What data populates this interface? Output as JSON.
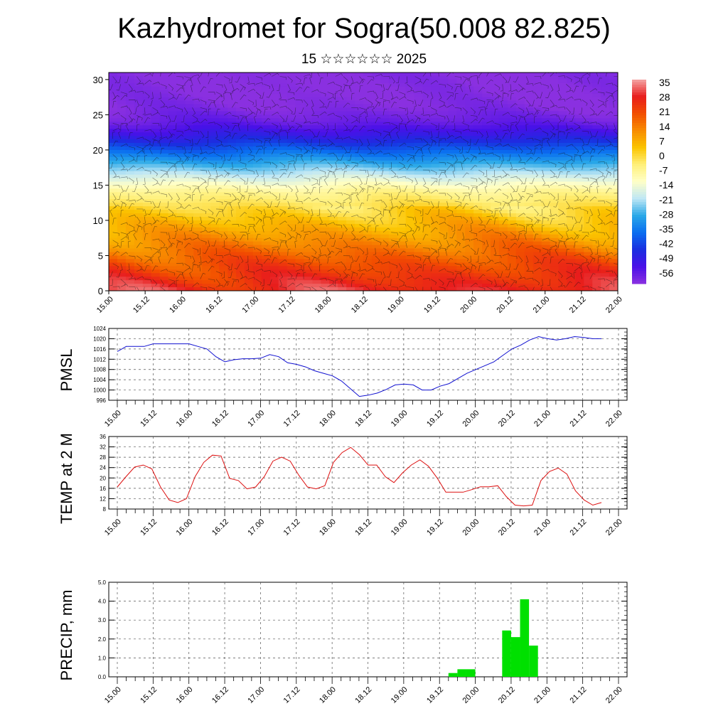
{
  "header": {
    "title": "Kazhydromet for Sogra(50.008 82.825)",
    "subtitle": "15 ☆☆☆☆☆☆ 2025"
  },
  "x_axis_ticks": [
    "15.00",
    "15.12",
    "16.00",
    "16.12",
    "17.00",
    "17.12",
    "18.00",
    "18.12",
    "19.00",
    "19.12",
    "20.00",
    "20.12",
    "21.00",
    "21.12",
    "22.00"
  ],
  "colorbar": {
    "labels": [
      "35",
      "28",
      "21",
      "14",
      "7",
      "0",
      "-7",
      "-14",
      "-21",
      "-28",
      "-35",
      "-42",
      "-49",
      "-56"
    ],
    "colors": [
      "#f4a5a5",
      "#e81c1c",
      "#f24e00",
      "#f88c00",
      "#fbc400",
      "#fff07a",
      "#ffffc8",
      "#bfe7f5",
      "#29a8e8",
      "#0a6ef0",
      "#1a2ee0",
      "#4a10e8",
      "#8a30e0"
    ]
  },
  "chart_data": [
    {
      "type": "heatmap",
      "title": "",
      "ylabel": "",
      "ylim": [
        0,
        31
      ],
      "yticks": [
        0,
        5,
        10,
        15,
        20,
        25,
        30
      ],
      "color_scale_range": [
        -56,
        35
      ],
      "x_categories_ref": "x_axis_ticks",
      "vertical_profile": {
        "levels": [
          0,
          2,
          4,
          6,
          8,
          10,
          12,
          14,
          16,
          18,
          20,
          22,
          24,
          26,
          28,
          30,
          31
        ],
        "values": [
          28,
          24,
          20,
          15,
          10,
          5,
          0,
          -5,
          -15,
          -25,
          -35,
          -45,
          -52,
          -55,
          -56,
          -56,
          -56
        ]
      },
      "overlay": "wind barbs"
    },
    {
      "type": "line",
      "ylabel": "PMSL",
      "ylim": [
        996,
        1024
      ],
      "yticks": [
        996,
        1000,
        1004,
        1008,
        1012,
        1016,
        1020,
        1024
      ],
      "series_color": "#1010d0",
      "x_categories_ref": "x_axis_ticks",
      "values": [
        1015,
        1017,
        1017,
        1017,
        1018,
        1018,
        1018,
        1018,
        1018,
        1017,
        1016,
        1013,
        1011,
        1011.8,
        1012.2,
        1012.2,
        1012.4,
        1013.8,
        1013,
        1010.6,
        1010,
        1009,
        1007.5,
        1006.5,
        1005.5,
        1003.5,
        1000.5,
        997.5,
        998,
        998.8,
        1000.2,
        1002,
        1002.3,
        1002,
        1000,
        1000,
        1001.5,
        1002.5,
        1004.5,
        1006.5,
        1008,
        1009.5,
        1011,
        1013.5,
        1016,
        1017.5,
        1019.5,
        1020.8,
        1020,
        1019.5,
        1020,
        1020.8,
        1020.5,
        1020,
        1020
      ]
    },
    {
      "type": "line",
      "ylabel": "TEMP at 2 M",
      "ylim": [
        8,
        36
      ],
      "yticks": [
        8,
        12,
        16,
        20,
        24,
        28,
        32,
        36
      ],
      "series_color": "#dd1010",
      "x_categories_ref": "x_axis_ticks",
      "values": [
        16.5,
        20.5,
        24.2,
        25,
        23.5,
        16.5,
        11.5,
        10.5,
        12,
        20.5,
        26,
        28.8,
        28.5,
        19.8,
        19,
        15.8,
        16.5,
        20.5,
        26.5,
        28,
        26.5,
        21,
        16.5,
        15.8,
        17,
        26,
        29.8,
        31.8,
        29,
        25,
        25,
        20.5,
        18.2,
        22,
        25,
        27,
        24.5,
        20,
        14.5,
        14.5,
        14.5,
        15.5,
        16.6,
        16.6,
        17,
        12.8,
        9.5,
        9.2,
        9.5,
        19,
        22.5,
        23.8,
        21.5,
        15,
        11.5,
        9.5,
        10.5
      ]
    },
    {
      "type": "bar",
      "ylabel": "PRECIP, mm",
      "ylim": [
        0,
        5.0
      ],
      "yticks": [
        "0.0",
        "1.0",
        "2.0",
        "3.0",
        "4.0",
        "5.0"
      ],
      "series_color": "#00e000",
      "x_categories_ref": "x_axis_ticks",
      "values": [
        0,
        0,
        0,
        0,
        0,
        0,
        0,
        0,
        0,
        0,
        0,
        0,
        0,
        0,
        0,
        0,
        0,
        0,
        0,
        0,
        0,
        0,
        0,
        0,
        0,
        0,
        0,
        0,
        0,
        0,
        0,
        0,
        0,
        0,
        0,
        0,
        0,
        0.2,
        0.4,
        0.4,
        0,
        0,
        0,
        2.45,
        2.1,
        4.1,
        1.65,
        0,
        0,
        0,
        0,
        0,
        0,
        0,
        0,
        0
      ]
    }
  ]
}
